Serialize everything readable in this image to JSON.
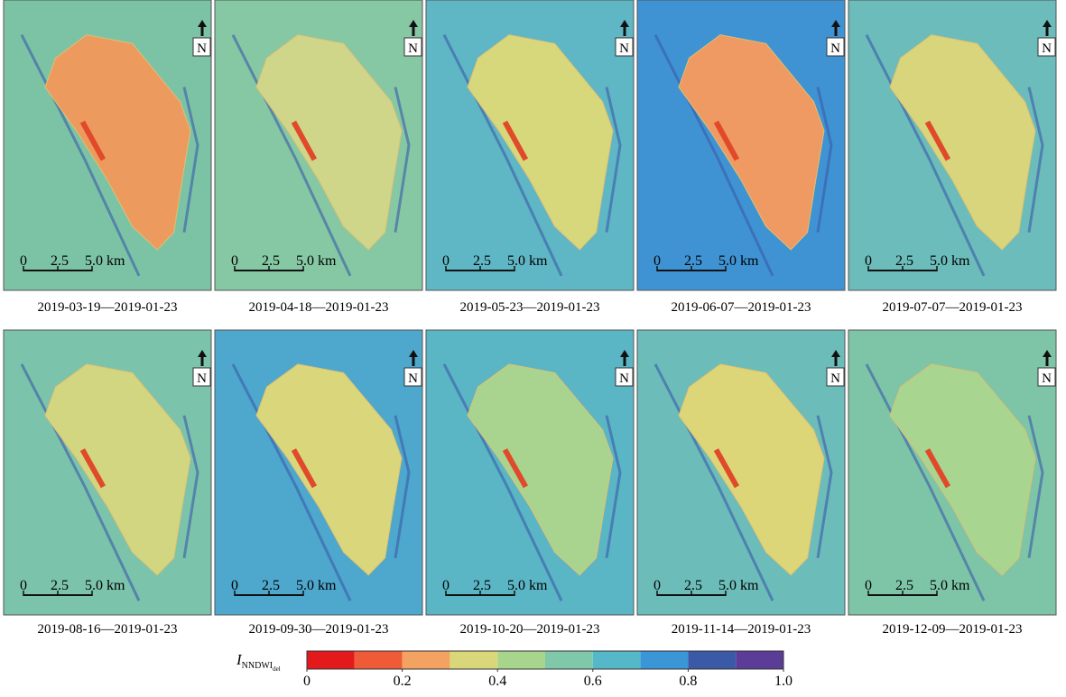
{
  "panels": [
    {
      "caption": "2019-03-19—2019-01-23",
      "background_color": "#7cc3a6",
      "lake_color": "#ec9a5e"
    },
    {
      "caption": "2019-04-18—2019-01-23",
      "background_color": "#86c7a4",
      "lake_color": "#cfd68a"
    },
    {
      "caption": "2019-05-23—2019-01-23",
      "background_color": "#5fb6c4",
      "lake_color": "#d7d77c"
    },
    {
      "caption": "2019-06-07—2019-01-23",
      "background_color": "#3f93d3",
      "lake_color": "#ee9a62"
    },
    {
      "caption": "2019-07-07—2019-01-23",
      "background_color": "#6bbcba",
      "lake_color": "#d8d57c"
    },
    {
      "caption": "2019-08-16—2019-01-23",
      "background_color": "#7cc3ab",
      "lake_color": "#d3d681"
    },
    {
      "caption": "2019-09-30—2019-01-23",
      "background_color": "#4ea7cc",
      "lake_color": "#d9d67b"
    },
    {
      "caption": "2019-10-20—2019-01-23",
      "background_color": "#5ab5c5",
      "lake_color": "#a9d48f"
    },
    {
      "caption": "2019-11-14—2019-01-23",
      "background_color": "#6cbcb9",
      "lake_color": "#dcd678"
    },
    {
      "caption": "2019-12-09—2019-01-23",
      "background_color": "#7ec5a8",
      "lake_color": "#a8d590"
    }
  ],
  "scale_bar": {
    "labels": [
      "0",
      "2.5",
      "5.0 km"
    ]
  },
  "north_label": "N",
  "colorbar": {
    "label": {
      "main": "I",
      "sub": "NNDWI",
      "subsub": "del"
    },
    "colors": [
      "#e31a1c",
      "#ef5a37",
      "#f4a261",
      "#d9d77a",
      "#a8d58c",
      "#7fc8a9",
      "#55b8c8",
      "#3a96d6",
      "#3a5aa8",
      "#5b3d98"
    ],
    "range": [
      0,
      1
    ],
    "ticks": [
      0,
      0.2,
      0.4,
      0.6,
      0.8,
      {
        "value": 1,
        "label": "1.0"
      }
    ]
  }
}
